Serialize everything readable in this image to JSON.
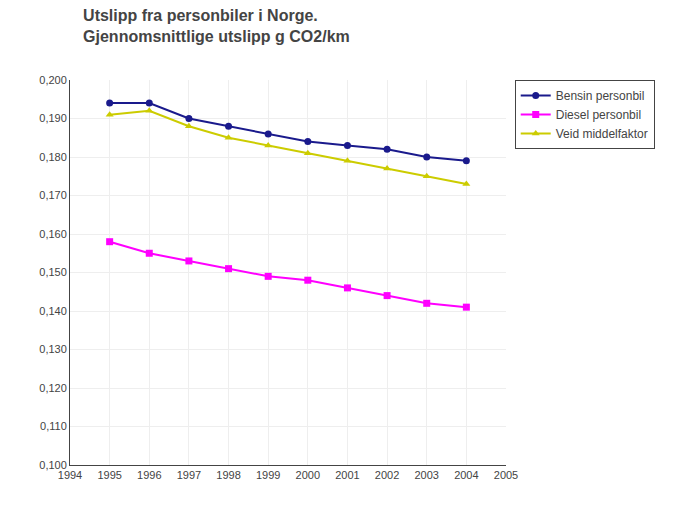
{
  "chart_data": {
    "type": "line",
    "title": "Utslipp fra personbiler i Norge.",
    "subtitle": "Gjennomsnittlige utslipp g CO2/km",
    "x": [
      1995,
      1996,
      1997,
      1998,
      1999,
      2000,
      2001,
      2002,
      2003,
      2004
    ],
    "series": [
      {
        "name": "Bensin personbil",
        "color": "#1a1a8c",
        "marker": "circle",
        "values": [
          0.194,
          0.194,
          0.19,
          0.188,
          0.186,
          0.184,
          0.183,
          0.182,
          0.18,
          0.179
        ]
      },
      {
        "name": "Diesel personbil",
        "color": "#ff00ff",
        "marker": "square",
        "values": [
          0.158,
          0.155,
          0.153,
          0.151,
          0.149,
          0.148,
          0.146,
          0.144,
          0.142,
          0.141
        ]
      },
      {
        "name": "Veid middelfaktor",
        "color": "#cccc00",
        "marker": "triangle-up",
        "values": [
          0.191,
          0.192,
          0.188,
          0.185,
          0.183,
          0.181,
          0.179,
          0.177,
          0.175,
          0.173
        ]
      }
    ],
    "xlim": [
      1994,
      2005
    ],
    "xticks": [
      1994,
      1995,
      1996,
      1997,
      1998,
      1999,
      2000,
      2001,
      2002,
      2003,
      2004,
      2005
    ],
    "ylim": [
      0.1,
      0.2
    ],
    "yticks": [
      {
        "value": 0.1,
        "label": "0,100"
      },
      {
        "value": 0.11,
        "label": "0,110"
      },
      {
        "value": 0.12,
        "label": "0,120"
      },
      {
        "value": 0.13,
        "label": "0,130"
      },
      {
        "value": 0.14,
        "label": "0,140"
      },
      {
        "value": 0.15,
        "label": "0,150"
      },
      {
        "value": 0.16,
        "label": "0,160"
      },
      {
        "value": 0.17,
        "label": "0,170"
      },
      {
        "value": 0.18,
        "label": "0,180"
      },
      {
        "value": 0.19,
        "label": "0,190"
      },
      {
        "value": 0.2,
        "label": "0,200"
      }
    ],
    "grid": true,
    "legend": "right"
  }
}
